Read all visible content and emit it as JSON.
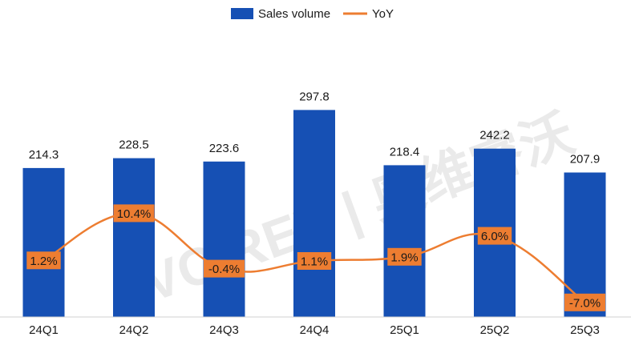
{
  "chart_data": {
    "type": "bar",
    "categories": [
      "24Q1",
      "24Q2",
      "24Q3",
      "24Q4",
      "25Q1",
      "25Q2",
      "25Q3"
    ],
    "series": [
      {
        "name": "Sales volume",
        "type": "bar",
        "values": [
          214.3,
          228.5,
          223.6,
          297.8,
          218.4,
          242.2,
          207.9
        ]
      },
      {
        "name": "YoY",
        "type": "line",
        "values": [
          1.2,
          10.4,
          -0.4,
          1.1,
          1.9,
          6.0,
          -7.0
        ],
        "labels": [
          "1.2%",
          "10.4%",
          "-0.4%",
          "1.1%",
          "1.9%",
          "6.0%",
          "-7.0%"
        ]
      }
    ],
    "bar_labels": [
      "214.3",
      "228.5",
      "223.6",
      "297.8",
      "218.4",
      "242.2",
      "207.9"
    ],
    "legend": {
      "position": "top",
      "entries": [
        "Sales volume",
        "YoY"
      ]
    },
    "grid": false,
    "colors": {
      "bar": "#1650b4",
      "line": "#ed7d31",
      "label_box": "#ed7d31"
    },
    "watermark": "AVC REV | 奥维睿沃"
  }
}
